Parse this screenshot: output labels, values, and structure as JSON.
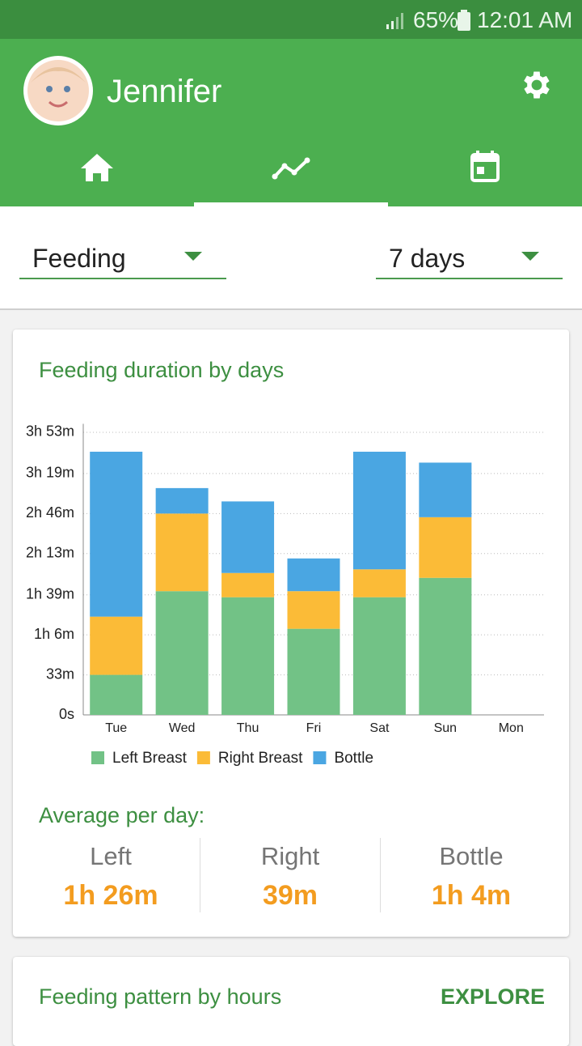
{
  "status_bar": {
    "battery": "65%",
    "time": "12:01 AM"
  },
  "header": {
    "name": "Jennifer"
  },
  "filters": {
    "type": "Feeding",
    "range": "7 days"
  },
  "chart_data": {
    "type": "bar",
    "stacked": true,
    "title": "Feeding duration by days",
    "categories": [
      "Tue",
      "Wed",
      "Thu",
      "Fri",
      "Sat",
      "Sun",
      "Mon"
    ],
    "series": [
      {
        "name": "Left Breast",
        "color": "#72c286",
        "values": [
          33,
          102,
          97,
          71,
          97,
          113,
          0
        ]
      },
      {
        "name": "Right Breast",
        "color": "#fbbb37",
        "values": [
          48,
          64,
          20,
          31,
          23,
          50,
          0
        ]
      },
      {
        "name": "Bottle",
        "color": "#4aa6e2",
        "values": [
          136,
          21,
          59,
          27,
          97,
          45,
          0
        ]
      }
    ],
    "ylim": [
      0,
      240
    ],
    "yticks": [
      {
        "value": 0,
        "label": "0s"
      },
      {
        "value": 33,
        "label": "33m"
      },
      {
        "value": 66,
        "label": "1h 6m"
      },
      {
        "value": 99,
        "label": "1h 39m"
      },
      {
        "value": 133,
        "label": "2h 13m"
      },
      {
        "value": 166,
        "label": "2h 46m"
      },
      {
        "value": 199,
        "label": "3h 19m"
      },
      {
        "value": 233,
        "label": "3h 53m"
      }
    ],
    "grid": true,
    "legend": "bottom"
  },
  "average": {
    "title": "Average per day:",
    "items": [
      {
        "label": "Left",
        "value": "1h 26m"
      },
      {
        "label": "Right",
        "value": "39m"
      },
      {
        "label": "Bottle",
        "value": "1h 4m"
      }
    ]
  },
  "pattern": {
    "title": "Feeding pattern by hours",
    "action": "EXPLORE"
  }
}
